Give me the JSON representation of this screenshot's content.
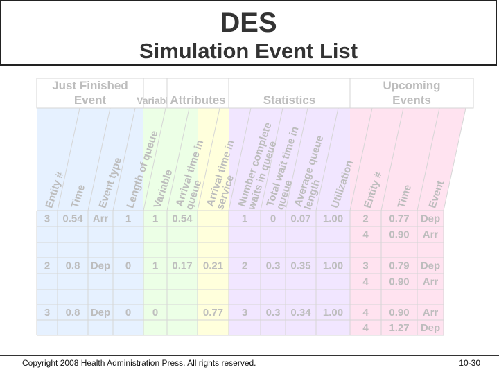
{
  "title": {
    "line1": "DES",
    "line2": "Simulation Event List"
  },
  "group_headers": [
    {
      "text": "Just Finished\nEvent"
    },
    {
      "text": "Variable"
    },
    {
      "text": "Attributes"
    },
    {
      "text": "Statistics"
    },
    {
      "text": "Upcoming\nEvents"
    }
  ],
  "column_headers": [
    "Entity #",
    "Time",
    "Event type",
    "Length of queue",
    "Variable",
    "Arrival time in\nqueue",
    "Arrival time in\nservice",
    "Number complete\nwaits in queue",
    "Total wait time in\nqueue",
    "Average queue\nlength",
    "Utilization",
    "Entity #",
    "Time",
    "Event"
  ],
  "rows": [
    [
      "3",
      "0.54",
      "Arr",
      "1",
      "1",
      "0.54",
      "",
      "1",
      "0",
      "0.07",
      "1.00",
      "2",
      "0.77",
      "Dep"
    ],
    [
      "",
      "",
      "",
      "",
      "",
      "",
      "",
      "",
      "",
      "",
      "",
      "4",
      "0.90",
      "Arr"
    ],
    [
      "",
      "",
      "",
      "",
      "",
      "",
      "",
      "",
      "",
      "",
      "",
      "",
      "",
      ""
    ],
    [
      "2",
      "0.8",
      "Dep",
      "0",
      "1",
      "0.17",
      "0.21",
      "2",
      "0.3",
      "0.35",
      "1.00",
      "3",
      "0.79",
      "Dep"
    ],
    [
      "",
      "",
      "",
      "",
      "",
      "",
      "",
      "",
      "",
      "",
      "",
      "4",
      "0.90",
      "Arr"
    ],
    [
      "",
      "",
      "",
      "",
      "",
      "",
      "",
      "",
      "",
      "",
      "",
      "",
      "",
      ""
    ],
    [
      "3",
      "0.8",
      "Dep",
      "0",
      "0",
      "",
      "0.77",
      "3",
      "0.3",
      "0.34",
      "1.00",
      "4",
      "0.90",
      "Arr"
    ],
    [
      "",
      "",
      "",
      "",
      "",
      "",
      "",
      "",
      "",
      "",
      "",
      "4",
      "1.27",
      "Dep"
    ]
  ],
  "band_colors": [
    "#e6f1ff",
    "#ecffe6",
    "#ffffdc",
    "#f1e6ff",
    "#ffe3f0"
  ],
  "footer": {
    "copyright": "Copyright 2008 Health Administration Press. All rights reserved.",
    "page": "10-30"
  }
}
